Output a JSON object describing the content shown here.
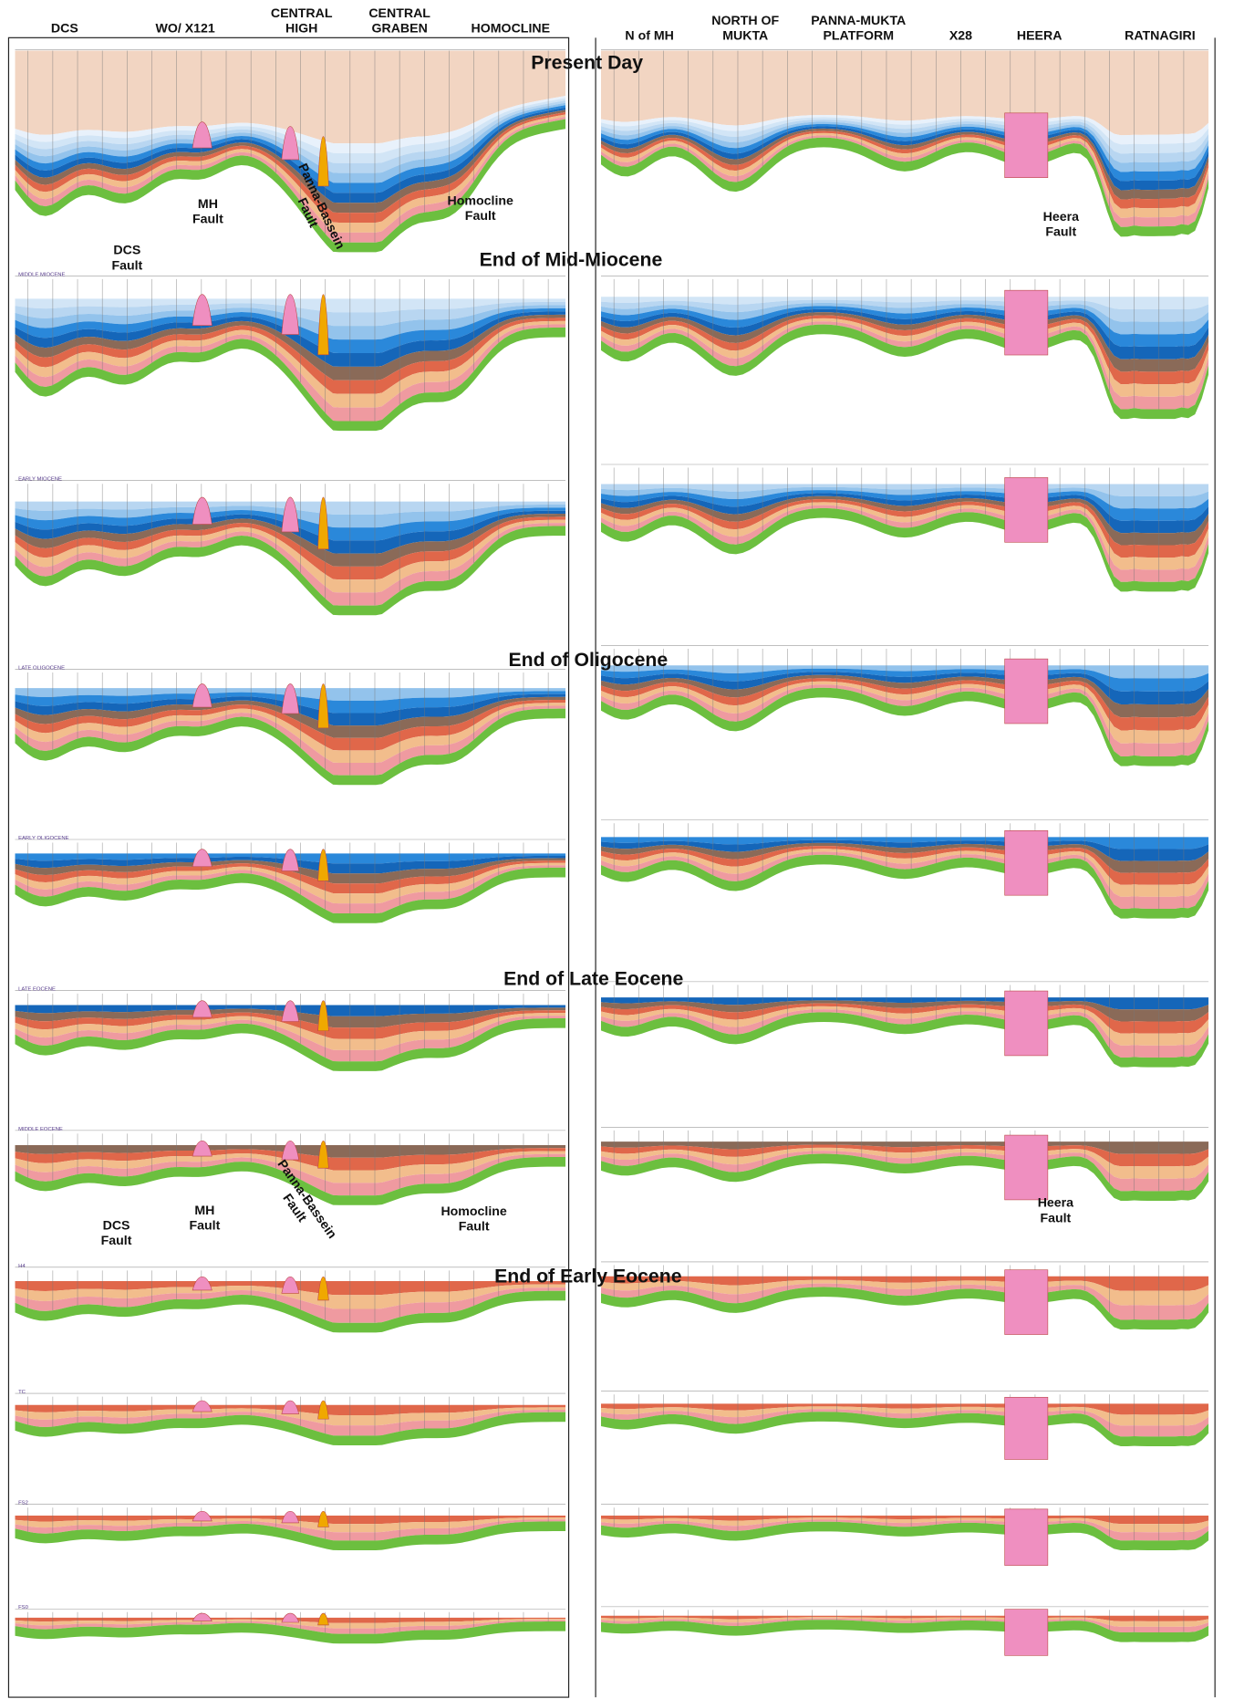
{
  "column_headers": {
    "left": [
      [
        "DCS"
      ],
      [
        "WO/ X121"
      ],
      [
        "CENTRAL",
        "HIGH"
      ],
      [
        "CENTRAL",
        "GRABEN"
      ],
      [
        "HOMOCLINE"
      ]
    ],
    "right": [
      [
        "N of MH"
      ],
      [
        "NORTH OF",
        "MUKTA"
      ],
      [
        "PANNA-MUKTA",
        "PLATFORM"
      ],
      [
        "X28"
      ],
      [
        "HEERA"
      ],
      [
        "RATNAGIRI"
      ]
    ]
  },
  "stage_titles": [
    "Present Day",
    "End of Mid-Miocene",
    "End of Oligocene",
    "End of Late Eocene",
    "End of Early Eocene"
  ],
  "fault_labels": [
    {
      "lines": [
        "MH",
        "Fault"
      ]
    },
    {
      "lines": [
        "DCS",
        "Fault"
      ]
    },
    {
      "lines": [
        "Panna-Bassein",
        "Fault"
      ]
    },
    {
      "lines": [
        "Homocline",
        "Fault"
      ]
    },
    {
      "lines": [
        "Heera",
        "Fault"
      ]
    },
    {
      "lines": [
        "DCS",
        "Fault"
      ]
    },
    {
      "lines": [
        "MH",
        "Fault"
      ]
    },
    {
      "lines": [
        "Panna-Bassein",
        "Fault"
      ]
    },
    {
      "lines": [
        "Homocline",
        "Fault"
      ]
    },
    {
      "lines": [
        "Heera",
        "Fault"
      ]
    }
  ],
  "panel_labels": [
    "MIDDLE MIOCENE",
    "EARLY MIOCENE",
    "LATE OLIGOCENE",
    "EARLY OLIGOCENE",
    "LATE EOCENE",
    "MIDDLE EOCENE",
    "H4",
    "TC",
    "FS2",
    "FS0"
  ]
}
